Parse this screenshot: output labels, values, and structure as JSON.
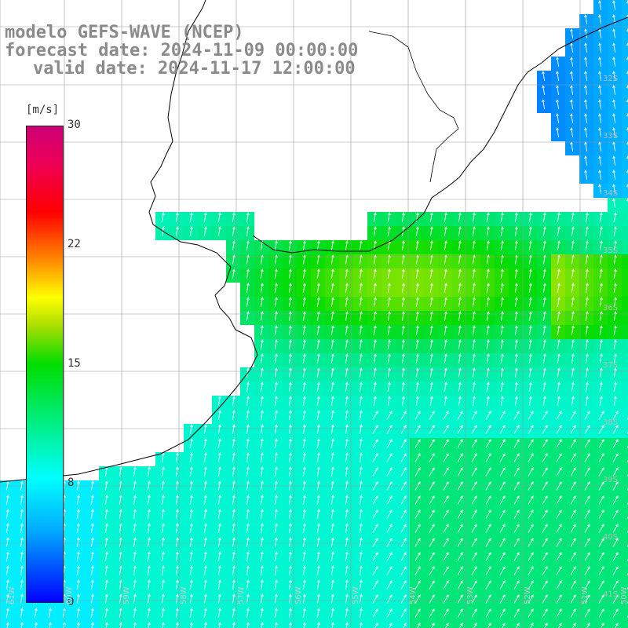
{
  "title": {
    "line1": "modelo GEFS-WAVE (NCEP)",
    "line2": "forecast date: 2024-11-09 00:00:00",
    "line3": "valid date: 2024-11-17 12:00:00"
  },
  "colorbar": {
    "unit": "[m/s]",
    "ticks": [
      "30",
      "22",
      "15",
      "8",
      "0"
    ],
    "tick_values": [
      30,
      22,
      15,
      8,
      0
    ]
  },
  "lon_labels": [
    "61W",
    "60W",
    "59W",
    "58W",
    "57W",
    "56W",
    "55W",
    "54W",
    "53W",
    "52W",
    "51W",
    "50W"
  ],
  "lat_labels": [
    "32S",
    "33S",
    "34S",
    "35S",
    "36S",
    "37S",
    "38S",
    "39S",
    "40S",
    "41S"
  ],
  "colors": {
    "land": "#ffffff",
    "grid": "#999999",
    "coast": "#000000",
    "arrows": "#ffffff"
  }
}
